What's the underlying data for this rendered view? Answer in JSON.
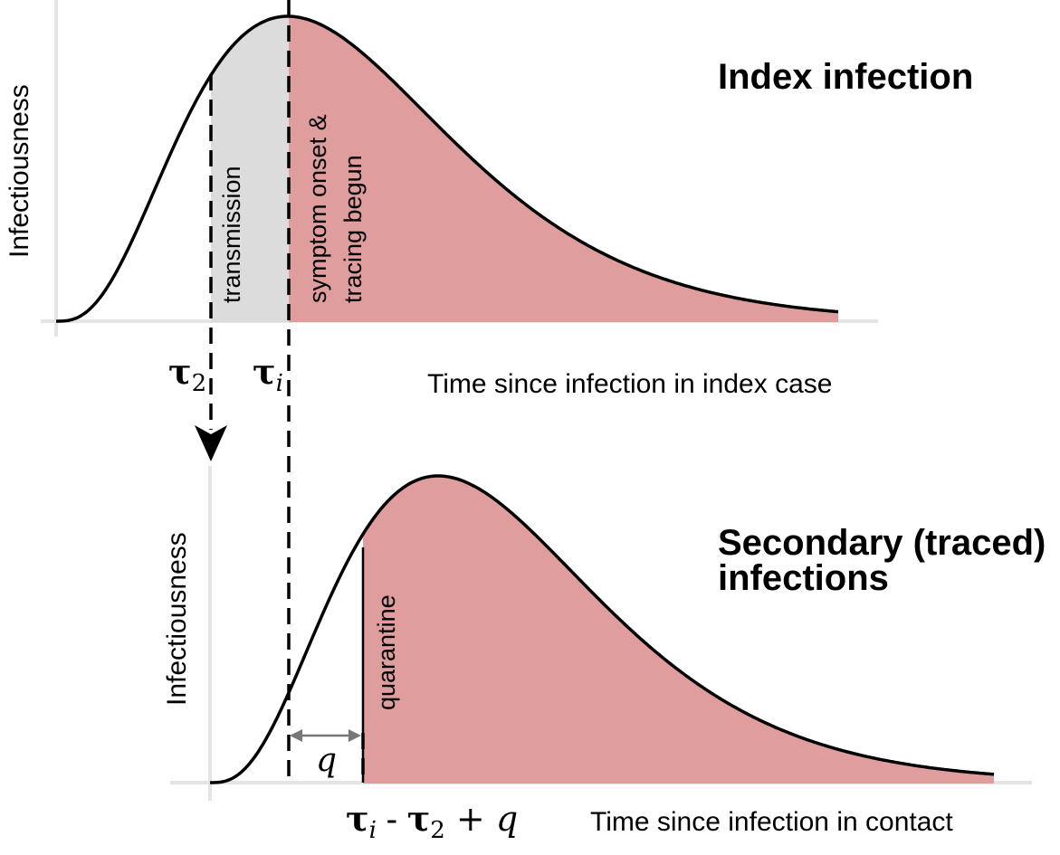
{
  "colors": {
    "curve": "#000000",
    "axis": "#e4e4e4",
    "grey_fill": "#dcdcdc",
    "red_fill": "#df9d9e",
    "dashed": "#000000",
    "q_arrow": "#777777"
  },
  "index_panel": {
    "title": "Index infection",
    "ylabel": "Infectiousness",
    "xlabel": "Time since infection in index case",
    "transmission_label": "transmission",
    "symptom_label_line1": "symptom onset &",
    "symptom_label_line2": "tracing begun"
  },
  "secondary_panel": {
    "title_line1": "Secondary (traced)",
    "title_line2": "infections",
    "ylabel": "Infectiousness",
    "xlabel": "Time since infection in contact",
    "quarantine_label": "quarantine"
  },
  "markers": {
    "tau2_symbol": "τ",
    "tau2_sub": "2",
    "taui_symbol": "τ",
    "taui_sub": "i",
    "q_symbol": "q",
    "bottom_expr": {
      "t1": "τ",
      "s1": "i",
      "minus": " - ",
      "t2": "τ",
      "s2": "2",
      "plus": " + ",
      "q": "q"
    }
  },
  "icons": [
    "down-arrowhead-icon",
    "double-headed-arrow-icon"
  ]
}
